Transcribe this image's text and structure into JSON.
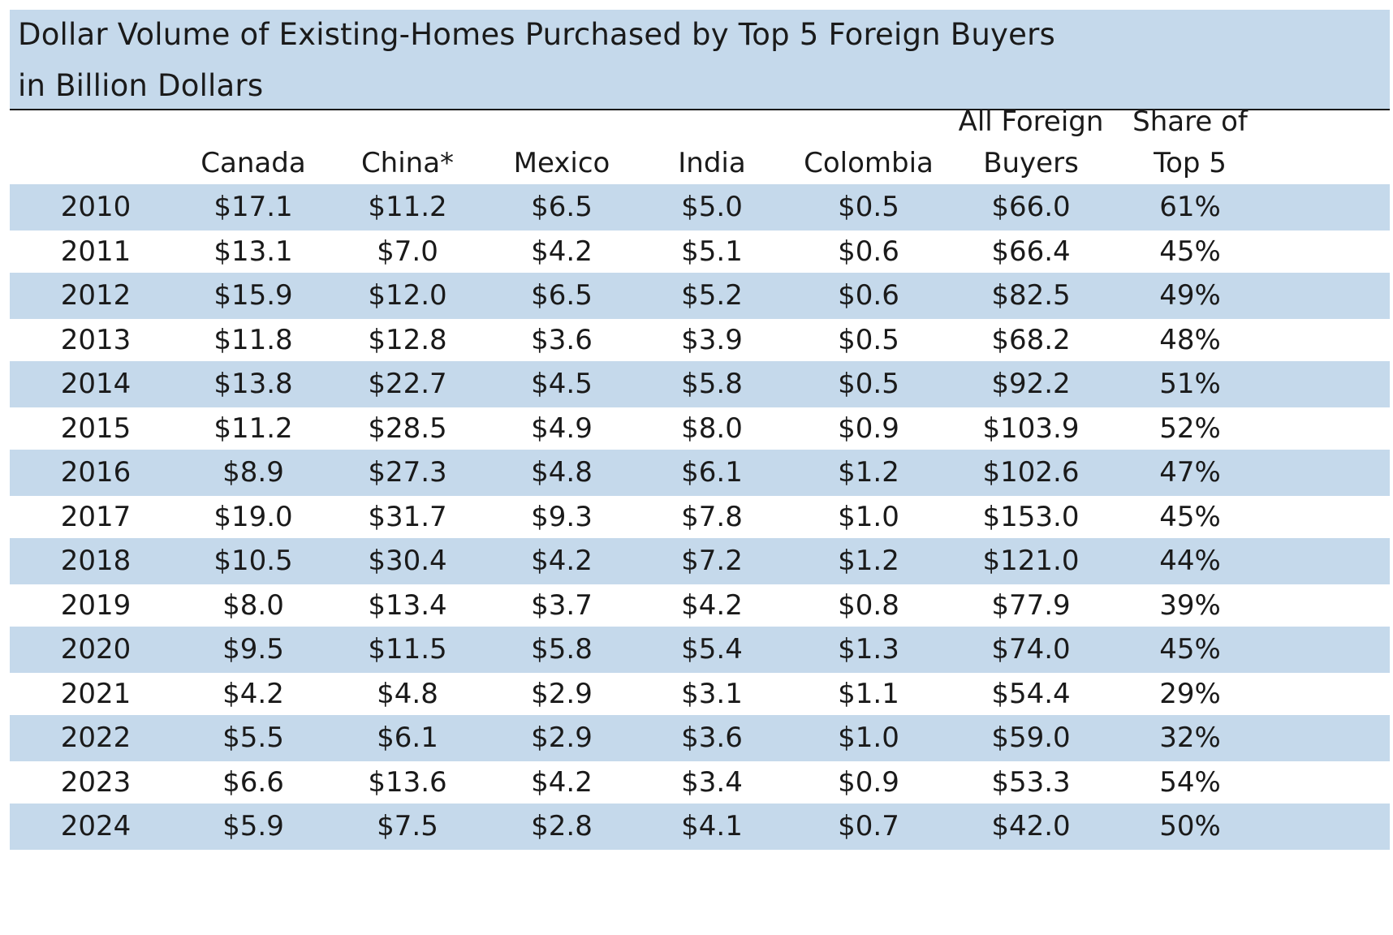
{
  "chart_data": {
    "type": "table",
    "title_line1": "Dollar Volume of Existing-Homes Purchased by Top 5 Foreign Buyers",
    "title_line2": "in Billion Dollars",
    "columns": [
      {
        "line1": "",
        "line2": "Canada"
      },
      {
        "line1": "",
        "line2": "China*"
      },
      {
        "line1": "",
        "line2": "Mexico"
      },
      {
        "line1": "",
        "line2": "India"
      },
      {
        "line1": "",
        "line2": "Colombia"
      },
      {
        "line1": "All Foreign",
        "line2": "Buyers"
      },
      {
        "line1": "Share of",
        "line2": "Top 5"
      }
    ],
    "rows": [
      {
        "year": "2010",
        "values": [
          "$17.1",
          "$11.2",
          "$6.5",
          "$5.0",
          "$0.5",
          "$66.0",
          "61%"
        ]
      },
      {
        "year": "2011",
        "values": [
          "$13.1",
          "$7.0",
          "$4.2",
          "$5.1",
          "$0.6",
          "$66.4",
          "45%"
        ]
      },
      {
        "year": "2012",
        "values": [
          "$15.9",
          "$12.0",
          "$6.5",
          "$5.2",
          "$0.6",
          "$82.5",
          "49%"
        ]
      },
      {
        "year": "2013",
        "values": [
          "$11.8",
          "$12.8",
          "$3.6",
          "$3.9",
          "$0.5",
          "$68.2",
          "48%"
        ]
      },
      {
        "year": "2014",
        "values": [
          "$13.8",
          "$22.7",
          "$4.5",
          "$5.8",
          "$0.5",
          "$92.2",
          "51%"
        ]
      },
      {
        "year": "2015",
        "values": [
          "$11.2",
          "$28.5",
          "$4.9",
          "$8.0",
          "$0.9",
          "$103.9",
          "52%"
        ]
      },
      {
        "year": "2016",
        "values": [
          "$8.9",
          "$27.3",
          "$4.8",
          "$6.1",
          "$1.2",
          "$102.6",
          "47%"
        ]
      },
      {
        "year": "2017",
        "values": [
          "$19.0",
          "$31.7",
          "$9.3",
          "$7.8",
          "$1.0",
          "$153.0",
          "45%"
        ]
      },
      {
        "year": "2018",
        "values": [
          "$10.5",
          "$30.4",
          "$4.2",
          "$7.2",
          "$1.2",
          "$121.0",
          "44%"
        ]
      },
      {
        "year": "2019",
        "values": [
          "$8.0",
          "$13.4",
          "$3.7",
          "$4.2",
          "$0.8",
          "$77.9",
          "39%"
        ]
      },
      {
        "year": "2020",
        "values": [
          "$9.5",
          "$11.5",
          "$5.8",
          "$5.4",
          "$1.3",
          "$74.0",
          "45%"
        ]
      },
      {
        "year": "2021",
        "values": [
          "$4.2",
          "$4.8",
          "$2.9",
          "$3.1",
          "$1.1",
          "$54.4",
          "29%"
        ]
      },
      {
        "year": "2022",
        "values": [
          "$5.5",
          "$6.1",
          "$2.9",
          "$3.6",
          "$1.0",
          "$59.0",
          "32%"
        ]
      },
      {
        "year": "2023",
        "values": [
          "$6.6",
          "$13.6",
          "$4.2",
          "$3.4",
          "$0.9",
          "$53.3",
          "54%"
        ]
      },
      {
        "year": "2024",
        "values": [
          "$5.9",
          "$7.5",
          "$2.8",
          "$4.1",
          "$0.7",
          "$42.0",
          "50%"
        ]
      }
    ],
    "colors": {
      "band": "#c5d9eb",
      "text": "#1a1a1a",
      "rule": "#1a1a1a"
    }
  }
}
